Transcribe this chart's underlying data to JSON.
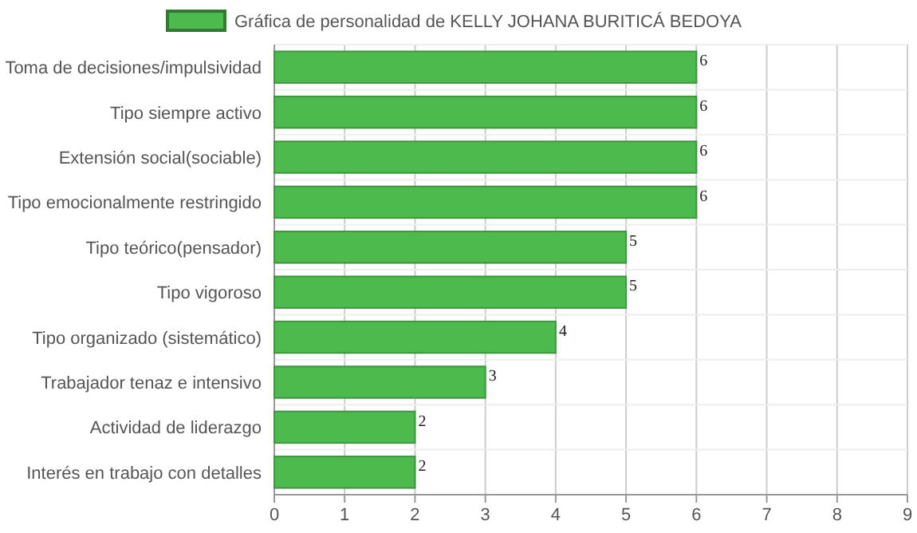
{
  "chart_data": {
    "type": "bar",
    "orientation": "horizontal",
    "categories": [
      "Toma de decisiones/impulsividad",
      "Tipo siempre activo",
      "Extensión social(sociable)",
      "Tipo emocionalmente restringido",
      "Tipo teórico(pensador)",
      "Tipo vigoroso",
      "Tipo organizado (sistemático)",
      "Trabajador tenaz e intensivo",
      "Actividad de liderazgo",
      "Interés en trabajo con detalles"
    ],
    "series": [
      {
        "name": "Gráfica de personalidad de KELLY JOHANA BURITICÁ BEDOYA",
        "color": "#4cba4c",
        "values": [
          6,
          6,
          6,
          6,
          5,
          5,
          4,
          3,
          2,
          2
        ]
      }
    ],
    "xlim": [
      0,
      9
    ],
    "xticks": [
      0,
      1,
      2,
      3,
      4,
      5,
      6,
      7,
      8,
      9
    ],
    "grid": true,
    "legend": "top",
    "data_labels": true
  }
}
